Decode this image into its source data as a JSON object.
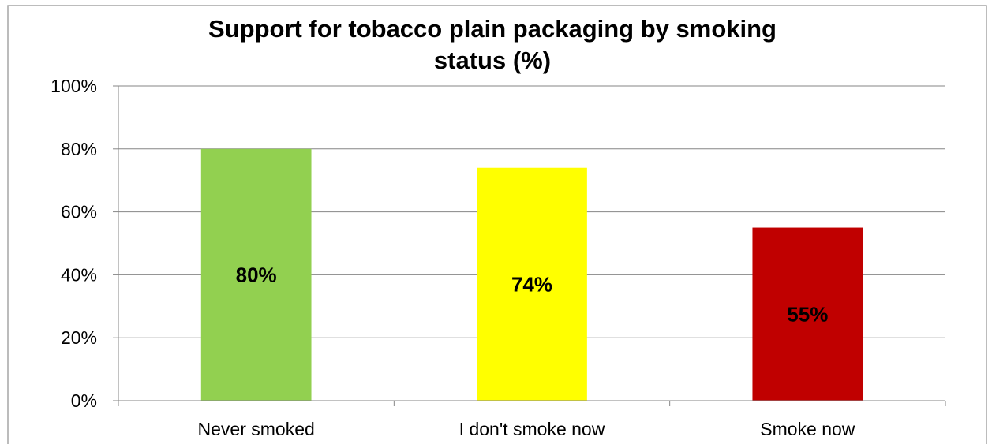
{
  "chart_data": {
    "type": "bar",
    "title_lines": [
      "Support for tobacco plain packaging by smoking",
      "status (%)"
    ],
    "categories": [
      "Never smoked",
      "I don't smoke now",
      "Smoke now"
    ],
    "values": [
      80,
      74,
      55
    ],
    "data_labels": [
      "80%",
      "74%",
      "55%"
    ],
    "bar_colors": [
      "#92d050",
      "#ffff00",
      "#c00000"
    ],
    "ylim": [
      0,
      100
    ],
    "y_ticks": [
      0,
      20,
      40,
      60,
      80,
      100
    ],
    "y_tick_labels": [
      "0%",
      "20%",
      "40%",
      "60%",
      "80%",
      "100%"
    ],
    "grid": true,
    "legend": "none"
  }
}
